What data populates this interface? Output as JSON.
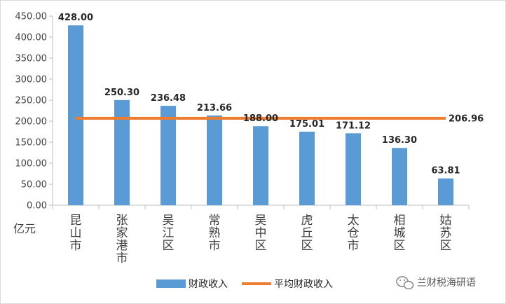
{
  "chart_data": {
    "type": "bar",
    "unit_label": "亿元",
    "categories": [
      "昆山市",
      "张家港市",
      "吴江区",
      "常熟市",
      "吴中区",
      "虎丘区",
      "太仓市",
      "相城区",
      "姑苏区"
    ],
    "series": [
      {
        "name": "财政收入",
        "type": "bar",
        "color": "#5b9bd5",
        "values": [
          428.0,
          250.3,
          236.48,
          213.66,
          188.0,
          175.01,
          171.12,
          136.3,
          63.81
        ],
        "labels": [
          "428.00",
          "250.30",
          "236.48",
          "213.66",
          "188.00",
          "175.01",
          "171.12",
          "136.30",
          "63.81"
        ]
      },
      {
        "name": "平均财政收入",
        "type": "line",
        "color": "#ed7d31",
        "value": 206.96,
        "label": "206.96"
      }
    ],
    "yticks": [
      "0.00",
      "50.00",
      "100.00",
      "150.00",
      "200.00",
      "250.00",
      "300.00",
      "350.00",
      "400.00",
      "450.00"
    ],
    "ylim": [
      0,
      450
    ],
    "grid": false,
    "legend": "bottom"
  },
  "watermark": "兰财税海研语",
  "watermark_icon": "wechat-icon"
}
